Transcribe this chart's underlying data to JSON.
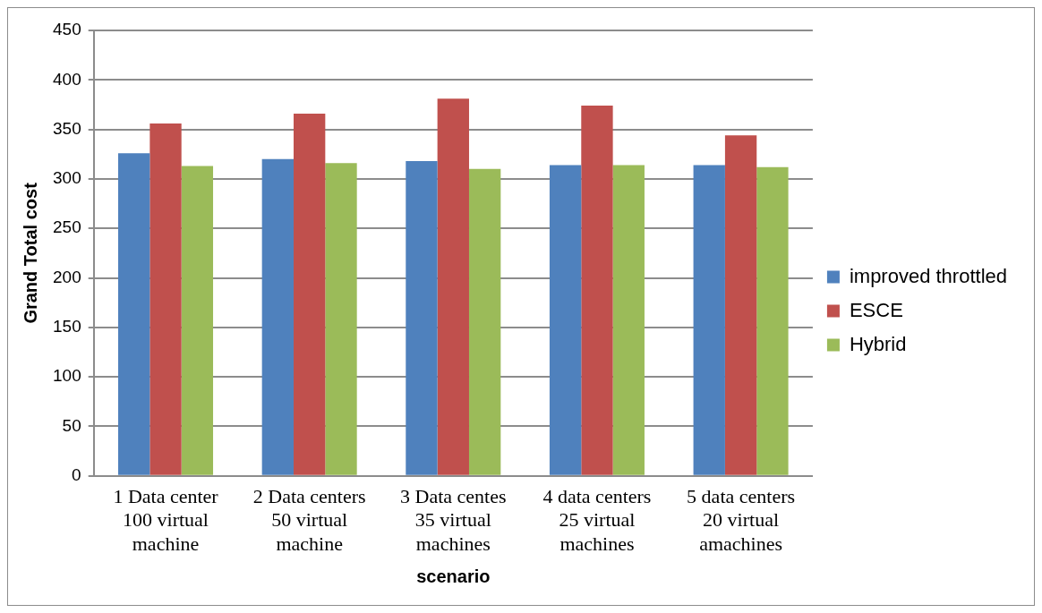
{
  "chart_data": {
    "type": "bar",
    "xlabel": "scenario",
    "ylabel": "Grand Total cost",
    "categories": [
      "1 Data center 100 virtual machine",
      "2 Data centers 50 virtual machine",
      "3 Data centes 35 virtual machines",
      "4 data centers 25 virtual machines",
      "5 data centers 20 virtual amachines"
    ],
    "series": [
      {
        "name": "improved throttled",
        "color": "#4f81bd",
        "values": [
          326,
          320,
          318,
          314,
          314
        ]
      },
      {
        "name": "ESCE",
        "color": "#c0504d",
        "values": [
          356,
          366,
          381,
          374,
          344
        ]
      },
      {
        "name": "Hybrid",
        "color": "#9bbb59",
        "values": [
          313,
          316,
          310,
          314,
          312
        ]
      }
    ],
    "ylim": [
      0,
      450
    ],
    "yticks": [
      0,
      50,
      100,
      150,
      200,
      250,
      300,
      350,
      400,
      450
    ],
    "grid": "y",
    "legend": "right"
  }
}
